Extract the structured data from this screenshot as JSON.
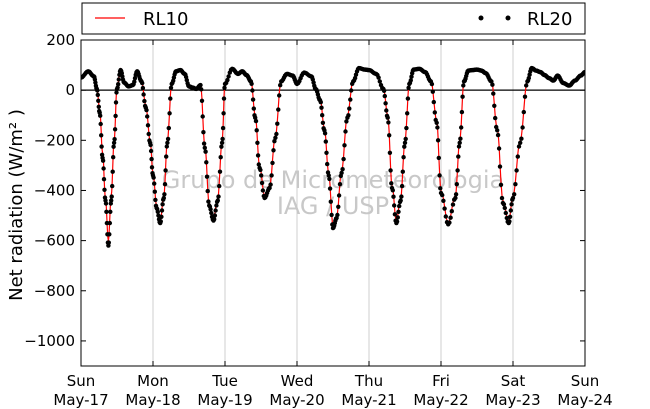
{
  "chart_data": {
    "type": "line",
    "title": "",
    "xlabel": "",
    "ylabel": "Net radiation (W/m² )",
    "ylim": [
      -1100,
      200
    ],
    "yticks": [
      200,
      0,
      -200,
      -400,
      -600,
      -800,
      -1000
    ],
    "ytick_labels": [
      "200",
      "0",
      "−200",
      "−400",
      "−600",
      "−800",
      "−1000"
    ],
    "xlim": [
      0,
      7
    ],
    "xticks": [
      {
        "pos": 0,
        "day": "Sun",
        "date": "May-17"
      },
      {
        "pos": 1,
        "day": "Mon",
        "date": "May-18"
      },
      {
        "pos": 2,
        "day": "Tue",
        "date": "May-19"
      },
      {
        "pos": 3,
        "day": "Wed",
        "date": "May-20"
      },
      {
        "pos": 4,
        "day": "Thu",
        "date": "May-21"
      },
      {
        "pos": 5,
        "day": "Fri",
        "date": "May-22"
      },
      {
        "pos": 6,
        "day": "Sat",
        "date": "May-23"
      },
      {
        "pos": 7,
        "day": "Sun",
        "date": "May-24"
      }
    ],
    "grid": "vertical",
    "legend_position": "top",
    "watermark": [
      "Grupo de Micrometeorologia",
      "IAG / USP"
    ],
    "series": [
      {
        "name": "RL10",
        "style": "line",
        "color": "#ff0000",
        "x": [
          0,
          0.1,
          0.18,
          0.22,
          0.26,
          0.3,
          0.34,
          0.38,
          0.42,
          0.46,
          0.5,
          0.55,
          0.6,
          0.66,
          0.72,
          0.78,
          0.84,
          0.9,
          0.96,
          1.0,
          1.05,
          1.1,
          1.15,
          1.2,
          1.26,
          1.32,
          1.38,
          1.44,
          1.5,
          1.55,
          1.6,
          1.66,
          1.72,
          1.78,
          1.84,
          1.9,
          1.96,
          2.0,
          2.1,
          2.18,
          2.24,
          2.3,
          2.36,
          2.42,
          2.48,
          2.55,
          2.62,
          2.7,
          2.78,
          2.86,
          2.94,
          3.0,
          3.1,
          3.2,
          3.26,
          3.32,
          3.38,
          3.44,
          3.5,
          3.55,
          3.62,
          3.7,
          3.78,
          3.86,
          3.94,
          4.0,
          4.1,
          4.2,
          4.26,
          4.32,
          4.38,
          4.44,
          4.5,
          4.56,
          4.62,
          4.7,
          4.78,
          4.86,
          4.94,
          5.0,
          5.1,
          5.2,
          5.26,
          5.32,
          5.38,
          5.44,
          5.5,
          5.56,
          5.62,
          5.7,
          5.78,
          5.86,
          5.94,
          6.0,
          6.1,
          6.2,
          6.26,
          6.32,
          6.38,
          6.44,
          6.5,
          6.56,
          6.62,
          6.7,
          6.78,
          6.86,
          6.94,
          7.0
        ],
        "values": [
          55,
          80,
          60,
          10,
          -80,
          -250,
          -430,
          -600,
          -420,
          -200,
          10,
          85,
          35,
          20,
          25,
          80,
          40,
          -60,
          -200,
          -330,
          -460,
          -525,
          -420,
          -200,
          30,
          80,
          82,
          70,
          20,
          15,
          10,
          25,
          -220,
          -450,
          -510,
          -430,
          -200,
          30,
          88,
          70,
          78,
          65,
          40,
          -100,
          -300,
          -420,
          -380,
          -180,
          40,
          70,
          62,
          30,
          75,
          60,
          10,
          -30,
          -150,
          -330,
          -540,
          -505,
          -320,
          -100,
          40,
          90,
          85,
          82,
          70,
          10,
          -100,
          -380,
          -520,
          -430,
          -200,
          30,
          85,
          88,
          75,
          40,
          -120,
          -400,
          -530,
          -420,
          -200,
          40,
          80,
          82,
          85,
          80,
          70,
          40,
          -150,
          -440,
          -525,
          -420,
          -200,
          40,
          90,
          80,
          75,
          62,
          50,
          40,
          60,
          30,
          20,
          40,
          60,
          75
        ],
        "values_note": ""
      },
      {
        "name": "RL20",
        "style": "dots",
        "color": "#000000",
        "x": [
          0,
          0.1,
          0.18,
          0.22,
          0.26,
          0.3,
          0.34,
          0.38,
          0.42,
          0.46,
          0.5,
          0.55,
          0.6,
          0.66,
          0.72,
          0.78,
          0.84,
          0.9,
          0.96,
          1.0,
          1.05,
          1.1,
          1.15,
          1.2,
          1.26,
          1.32,
          1.38,
          1.44,
          1.5,
          1.55,
          1.6,
          1.66,
          1.72,
          1.78,
          1.84,
          1.9,
          1.96,
          2.0,
          2.1,
          2.18,
          2.24,
          2.3,
          2.36,
          2.42,
          2.48,
          2.55,
          2.62,
          2.7,
          2.78,
          2.86,
          2.94,
          3.0,
          3.1,
          3.2,
          3.26,
          3.32,
          3.38,
          3.44,
          3.5,
          3.55,
          3.62,
          3.7,
          3.78,
          3.86,
          3.94,
          4.0,
          4.1,
          4.2,
          4.26,
          4.32,
          4.38,
          4.44,
          4.5,
          4.56,
          4.62,
          4.7,
          4.78,
          4.86,
          4.94,
          5.0,
          5.1,
          5.2,
          5.26,
          5.32,
          5.38,
          5.44,
          5.5,
          5.56,
          5.62,
          5.7,
          5.78,
          5.86,
          5.94,
          6.0,
          6.1,
          6.2,
          6.26,
          6.32,
          6.38,
          6.44,
          6.5,
          6.56,
          6.62,
          6.7,
          6.78,
          6.86,
          6.94,
          7.0
        ],
        "values": [
          50,
          75,
          55,
          5,
          -90,
          -270,
          -440,
          -620,
          -440,
          -210,
          5,
          80,
          30,
          15,
          20,
          75,
          35,
          -70,
          -210,
          -340,
          -470,
          -530,
          -430,
          -210,
          25,
          75,
          80,
          65,
          15,
          10,
          5,
          20,
          -230,
          -460,
          -520,
          -440,
          -210,
          25,
          85,
          65,
          75,
          60,
          35,
          -110,
          -310,
          -430,
          -390,
          -190,
          35,
          65,
          58,
          25,
          70,
          55,
          5,
          -40,
          -160,
          -340,
          -550,
          -510,
          -330,
          -110,
          35,
          88,
          82,
          80,
          65,
          5,
          -110,
          -390,
          -530,
          -440,
          -210,
          25,
          82,
          85,
          72,
          35,
          -130,
          -410,
          -535,
          -430,
          -210,
          35,
          78,
          80,
          82,
          78,
          68,
          35,
          -160,
          -450,
          -530,
          -430,
          -210,
          35,
          88,
          78,
          72,
          60,
          48,
          38,
          58,
          28,
          18,
          38,
          58,
          72
        ]
      }
    ]
  }
}
